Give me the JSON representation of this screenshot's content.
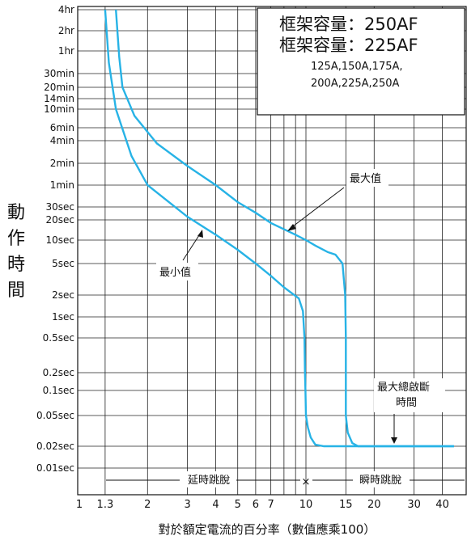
{
  "chart_data": {
    "type": "line",
    "title": "",
    "ylabel": "動作時間",
    "xlabel": "對於額定電流的百分率（數值應乘100）",
    "x_scale": "log",
    "y_scale": "log",
    "x_ticks": [
      "1",
      "1.3",
      "2",
      "3",
      "4",
      "5",
      "6",
      "7",
      "10",
      "15",
      "20",
      "30",
      "40"
    ],
    "y_ticks": [
      {
        "label": "4hr",
        "seconds": 14400
      },
      {
        "label": "2hr",
        "seconds": 7200
      },
      {
        "label": "1hr",
        "seconds": 3600
      },
      {
        "label": "30min",
        "seconds": 1800
      },
      {
        "label": "20min",
        "seconds": 1200
      },
      {
        "label": "14min",
        "seconds": 840
      },
      {
        "label": "10min",
        "seconds": 600
      },
      {
        "label": "6min",
        "seconds": 360
      },
      {
        "label": "4min",
        "seconds": 240
      },
      {
        "label": "2min",
        "seconds": 120
      },
      {
        "label": "1min",
        "seconds": 60
      },
      {
        "label": "30sec",
        "seconds": 30
      },
      {
        "label": "20sec",
        "seconds": 20
      },
      {
        "label": "10sec",
        "seconds": 10
      },
      {
        "label": "5sec",
        "seconds": 5
      },
      {
        "label": "2sec",
        "seconds": 2
      },
      {
        "label": "1sec",
        "seconds": 1
      },
      {
        "label": "0.5sec",
        "seconds": 0.5
      },
      {
        "label": "0.2sec",
        "seconds": 0.2
      },
      {
        "label": "0.1sec",
        "seconds": 0.1
      },
      {
        "label": "0.05sec",
        "seconds": 0.05
      },
      {
        "label": "0.02sec",
        "seconds": 0.02
      },
      {
        "label": "0.01sec",
        "seconds": 0.01
      }
    ],
    "series": [
      {
        "name": "最小值",
        "points": [
          [
            1.3,
            14400
          ],
          [
            1.35,
            2500
          ],
          [
            1.45,
            600
          ],
          [
            1.7,
            150
          ],
          [
            2,
            60
          ],
          [
            3,
            22
          ],
          [
            4,
            12
          ],
          [
            5,
            7.5
          ],
          [
            6,
            5
          ],
          [
            7,
            3.5
          ],
          [
            8,
            2.5
          ],
          [
            9.3,
            1.8
          ],
          [
            9.7,
            1.2
          ],
          [
            9.85,
            0.5
          ],
          [
            9.9,
            0.2
          ],
          [
            9.95,
            0.1
          ],
          [
            10,
            0.05
          ],
          [
            10.2,
            0.035
          ],
          [
            10.5,
            0.026
          ],
          [
            11,
            0.021
          ],
          [
            12,
            0.02
          ],
          [
            45,
            0.02
          ]
        ]
      },
      {
        "name": "最大值",
        "points": [
          [
            1.45,
            14400
          ],
          [
            1.5,
            3000
          ],
          [
            1.55,
            1200
          ],
          [
            1.75,
            500
          ],
          [
            2.2,
            220
          ],
          [
            3,
            110
          ],
          [
            4,
            60
          ],
          [
            5,
            35
          ],
          [
            6,
            25
          ],
          [
            7,
            18
          ],
          [
            9,
            12
          ],
          [
            10,
            10
          ],
          [
            11,
            8.5
          ],
          [
            12.5,
            7
          ],
          [
            13.5,
            6.5
          ],
          [
            14.5,
            5
          ],
          [
            14.9,
            2
          ],
          [
            15,
            0.5
          ],
          [
            15,
            0.05
          ],
          [
            15.3,
            0.03
          ],
          [
            16,
            0.022
          ],
          [
            17,
            0.02
          ],
          [
            45,
            0.02
          ]
        ]
      }
    ]
  },
  "legend": {
    "frame_line1": "框架容量：250AF",
    "frame_line2": "框架容量：225AF",
    "ratings_line1": "125A,150A,175A,",
    "ratings_line2": "200A,225A,250A"
  },
  "annotations": {
    "max_label": "最大值",
    "min_label": "最小值",
    "total_trip_line1": "最大總啟斷",
    "total_trip_line2": "時間",
    "delay_trip": "延時跳脫",
    "instant_trip": "瞬時跳脫",
    "cross_mark": "×"
  }
}
